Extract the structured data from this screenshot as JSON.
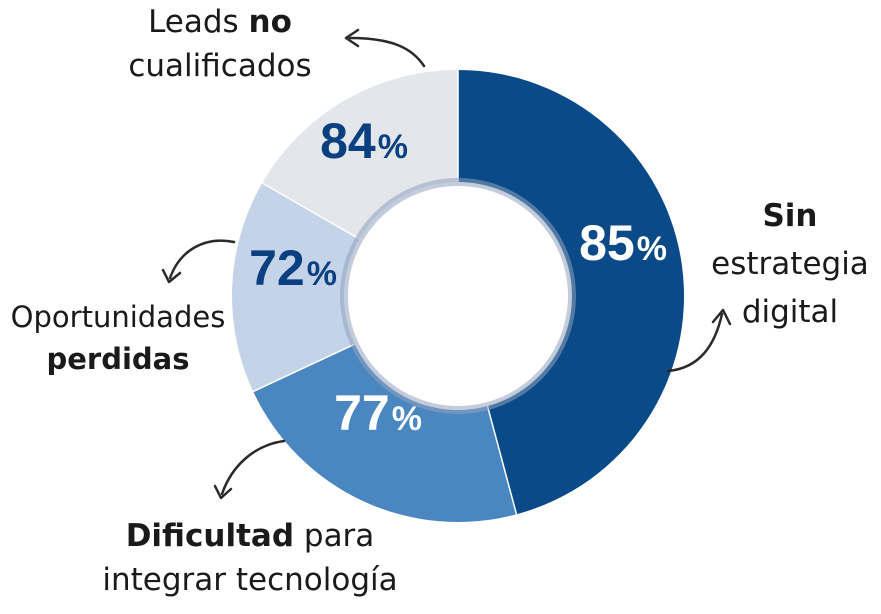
{
  "chart_data": {
    "type": "donut",
    "segments": [
      {
        "value_label": "85",
        "unit": "%",
        "color": "#0b4a88",
        "text_color": "#ffffff",
        "label_bold": "Sin",
        "label_rest": "estrategia digital"
      },
      {
        "value_label": "77",
        "unit": "%",
        "color": "#4a86c0",
        "text_color": "#ffffff",
        "label_bold": "Dificultad",
        "label_rest": "para integrar tecnología"
      },
      {
        "value_label": "72",
        "unit": "%",
        "color": "#c4d3e8",
        "text_color": "#0b4080",
        "label_bold": "perdidas",
        "label_rest": "Oportunidades"
      },
      {
        "value_label": "84",
        "unit": "%",
        "color": "#e3e6ea",
        "text_color": "#0b4080",
        "label_bold": "no",
        "label_rest_pre": "Leads",
        "label_rest": "cualificados"
      }
    ]
  },
  "labels": {
    "sin_l1": "Sin",
    "sin_l2": "estrategia",
    "sin_l3": "digital",
    "dif_bold": "Dificultad",
    "dif_l1_rest": " para",
    "dif_l2": "integrar tecnología",
    "opo_l1": "Oportunidades",
    "opo_l2": "perdidas",
    "leads_l1_pre": "Leads ",
    "leads_l1_bold": "no",
    "leads_l2": "cualificados"
  }
}
